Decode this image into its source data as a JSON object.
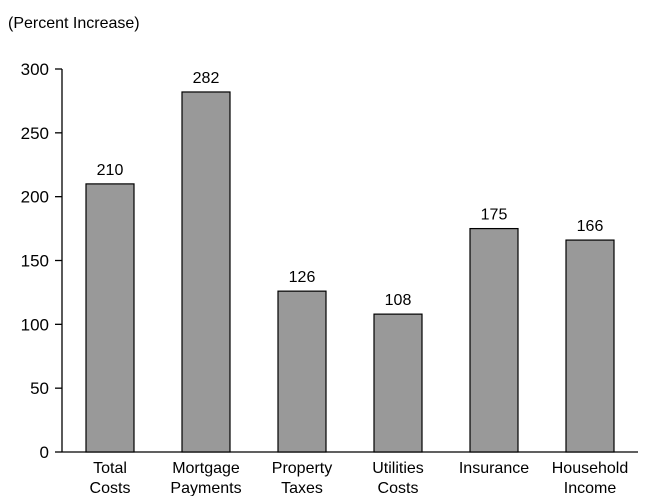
{
  "chart_data": {
    "type": "bar",
    "ylabel": "(Percent Increase)",
    "ylim": [
      0,
      300
    ],
    "yticks": [
      0,
      50,
      100,
      150,
      200,
      250,
      300
    ],
    "categories": [
      [
        "Total",
        "Costs"
      ],
      [
        "Mortgage",
        "Payments"
      ],
      [
        "Property",
        "Taxes"
      ],
      [
        "Utilities",
        "Costs"
      ],
      [
        "Insurance"
      ],
      [
        "Household",
        "Income"
      ]
    ],
    "values": [
      210,
      282,
      126,
      108,
      175,
      166
    ],
    "data_labels": [
      "210",
      "282",
      "126",
      "108",
      "175",
      "166"
    ],
    "bar_color": "#999999",
    "grid": false,
    "legend": "none"
  }
}
